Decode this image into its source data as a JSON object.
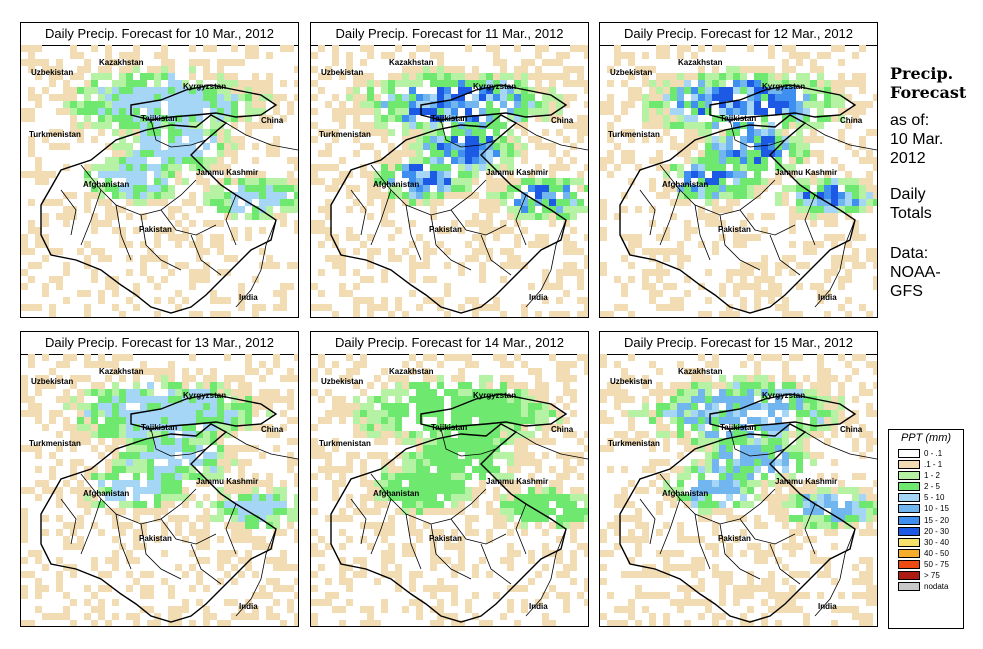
{
  "panels": [
    {
      "title": "Daily Precip. Forecast for  10 Mar., 2012",
      "intensity": 1
    },
    {
      "title": "Daily Precip. Forecast for  11 Mar., 2012",
      "intensity": 3
    },
    {
      "title": "Daily Precip. Forecast for  12 Mar., 2012",
      "intensity": 3
    },
    {
      "title": "Daily Precip. Forecast for  13 Mar., 2012",
      "intensity": 1
    },
    {
      "title": "Daily Precip. Forecast for  14 Mar., 2012",
      "intensity": 0
    },
    {
      "title": "Daily Precip. Forecast for  15 Mar., 2012",
      "intensity": 2
    }
  ],
  "map_labels": {
    "kazakhstan": "Kazakhstan",
    "uzbekistan": "Uzbekistan",
    "kyrgyzstan": "Kyrgyzstan",
    "tajikistan": "Tajikistan",
    "china": "China",
    "turkmenistan": "Turkmenistan",
    "afghanistan": "Afghanistan",
    "jammu_kashmir": "Jammu Kashmir",
    "pakistan": "Pakistan",
    "india": "India"
  },
  "side": {
    "title_line1": "Precip.",
    "title_line2": "Forecast",
    "asof_line1": "as of:",
    "asof_line2": "10 Mar.",
    "asof_line3": "2012",
    "totals_line1": "Daily",
    "totals_line2": "Totals",
    "data_line1": "Data:",
    "data_line2": "NOAA-",
    "data_line3": "GFS"
  },
  "legend": {
    "title": "PPT (mm)",
    "items": [
      {
        "label": "0 - .1",
        "color": "#ffffff"
      },
      {
        "label": ".1 - 1",
        "color": "#f2dcb4"
      },
      {
        "label": "1 - 2",
        "color": "#b6f2a4"
      },
      {
        "label": "2 - 5",
        "color": "#6ee86e"
      },
      {
        "label": "5 - 10",
        "color": "#a6d6f6"
      },
      {
        "label": "10 - 15",
        "color": "#72b6f0"
      },
      {
        "label": "15 - 20",
        "color": "#3f8ff0"
      },
      {
        "label": "20 - 30",
        "color": "#1c5ae6"
      },
      {
        "label": "30 - 40",
        "color": "#f6e26a"
      },
      {
        "label": "40 - 50",
        "color": "#f6ae2a"
      },
      {
        "label": "50 - 75",
        "color": "#ee4a14"
      },
      {
        "label": "> 75",
        "color": "#ae1a14"
      },
      {
        "label": "nodata",
        "color": "#c8c8c8"
      }
    ]
  }
}
